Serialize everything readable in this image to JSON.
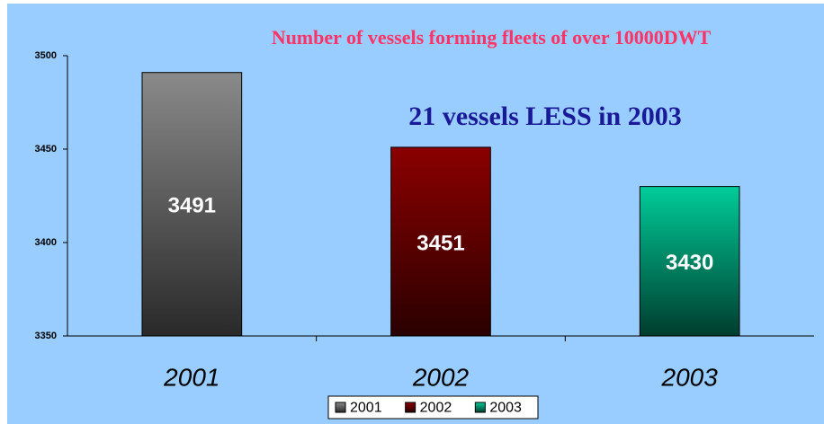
{
  "chart_data": {
    "type": "bar",
    "title": "Number of  vessels forming  fleets of  over 10000DWT",
    "annotation": "21 vessels LESS  in 2003",
    "categories": [
      "2001",
      "2002",
      "2003"
    ],
    "values": [
      3491,
      3451,
      3430
    ],
    "colors": [
      "#8a8a8a",
      "#8b0000",
      "#00cc99"
    ],
    "ylim": [
      3350,
      3500
    ],
    "yticks": [
      3350,
      3400,
      3450,
      3500
    ],
    "legend": "bottom"
  }
}
